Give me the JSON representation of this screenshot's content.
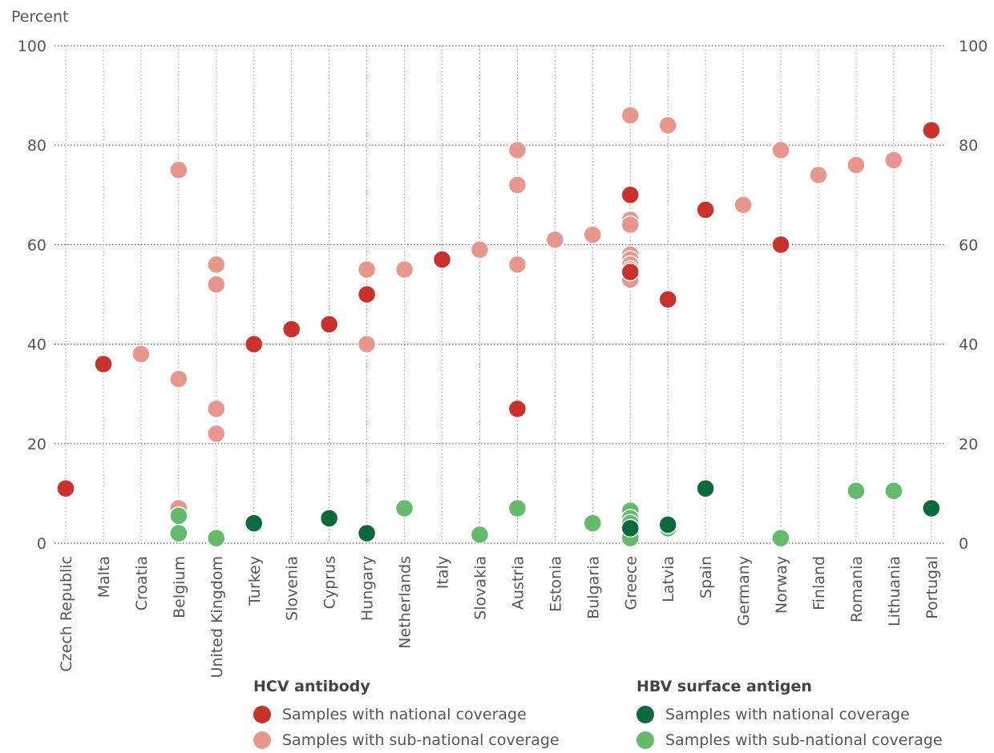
{
  "chart_data": {
    "type": "scatter",
    "y_unit": "Percent",
    "ylim": [
      0,
      100
    ],
    "y_ticks": [
      0,
      20,
      40,
      60,
      80,
      100
    ],
    "grid": true,
    "categories": [
      "Czech Republic",
      "Malta",
      "Croatia",
      "Belgium",
      "United Kingdom",
      "Turkey",
      "Slovenia",
      "Cyprus",
      "Hungary",
      "Netherlands",
      "Italy",
      "Slovakia",
      "Austria",
      "Estonia",
      "Bulgaria",
      "Greece",
      "Latvia",
      "Spain",
      "Germany",
      "Norway",
      "Finland",
      "Romania",
      "Lithuania",
      "Portugal"
    ],
    "legend_groups": [
      {
        "title": "HCV antibody",
        "entries": [
          "Samples with national coverage",
          "Samples with sub-national coverage"
        ]
      },
      {
        "title": "HBV surface antigen",
        "entries": [
          "Samples with national coverage",
          "Samples with sub-national coverage"
        ]
      }
    ],
    "series": [
      {
        "key": "hcv_sub",
        "group": "HCV antibody",
        "name": "Samples with sub-national coverage",
        "color": "#E8978F",
        "points": [
          {
            "x": "Croatia",
            "y": 38
          },
          {
            "x": "Belgium",
            "y": 75
          },
          {
            "x": "Belgium",
            "y": 33
          },
          {
            "x": "Belgium",
            "y": 7
          },
          {
            "x": "United Kingdom",
            "y": 56
          },
          {
            "x": "United Kingdom",
            "y": 52
          },
          {
            "x": "United Kingdom",
            "y": 27
          },
          {
            "x": "United Kingdom",
            "y": 22
          },
          {
            "x": "Hungary",
            "y": 55
          },
          {
            "x": "Hungary",
            "y": 40
          },
          {
            "x": "Netherlands",
            "y": 55
          },
          {
            "x": "Slovakia",
            "y": 59
          },
          {
            "x": "Austria",
            "y": 79
          },
          {
            "x": "Austria",
            "y": 72
          },
          {
            "x": "Austria",
            "y": 56
          },
          {
            "x": "Estonia",
            "y": 61
          },
          {
            "x": "Bulgaria",
            "y": 62
          },
          {
            "x": "Greece",
            "y": 86
          },
          {
            "x": "Greece",
            "y": 65
          },
          {
            "x": "Greece",
            "y": 64
          },
          {
            "x": "Greece",
            "y": 58
          },
          {
            "x": "Greece",
            "y": 57
          },
          {
            "x": "Greece",
            "y": 56
          },
          {
            "x": "Greece",
            "y": 55
          },
          {
            "x": "Greece",
            "y": 53
          },
          {
            "x": "Latvia",
            "y": 84
          },
          {
            "x": "Germany",
            "y": 68
          },
          {
            "x": "Norway",
            "y": 79
          },
          {
            "x": "Finland",
            "y": 74
          },
          {
            "x": "Romania",
            "y": 76
          },
          {
            "x": "Lithuania",
            "y": 77
          }
        ]
      },
      {
        "key": "hcv_nat",
        "group": "HCV antibody",
        "name": "Samples with national coverage",
        "color": "#C9312A",
        "points": [
          {
            "x": "Czech Republic",
            "y": 11
          },
          {
            "x": "Malta",
            "y": 36
          },
          {
            "x": "Turkey",
            "y": 40
          },
          {
            "x": "Slovenia",
            "y": 43
          },
          {
            "x": "Cyprus",
            "y": 44
          },
          {
            "x": "Hungary",
            "y": 50
          },
          {
            "x": "Italy",
            "y": 57
          },
          {
            "x": "Austria",
            "y": 27
          },
          {
            "x": "Greece",
            "y": 70
          },
          {
            "x": "Greece",
            "y": 54.5
          },
          {
            "x": "Latvia",
            "y": 49
          },
          {
            "x": "Spain",
            "y": 67
          },
          {
            "x": "Norway",
            "y": 60
          },
          {
            "x": "Portugal",
            "y": 83
          }
        ]
      },
      {
        "key": "hbv_sub",
        "group": "HBV surface antigen",
        "name": "Samples with sub-national coverage",
        "color": "#63BB6B",
        "points": [
          {
            "x": "Belgium",
            "y": 5.5
          },
          {
            "x": "Belgium",
            "y": 2
          },
          {
            "x": "United Kingdom",
            "y": 1
          },
          {
            "x": "Netherlands",
            "y": 7
          },
          {
            "x": "Slovakia",
            "y": 1.7
          },
          {
            "x": "Austria",
            "y": 7
          },
          {
            "x": "Bulgaria",
            "y": 4
          },
          {
            "x": "Greece",
            "y": 6.5
          },
          {
            "x": "Greece",
            "y": 5
          },
          {
            "x": "Greece",
            "y": 4
          },
          {
            "x": "Greece",
            "y": 2
          },
          {
            "x": "Greece",
            "y": 1
          },
          {
            "x": "Latvia",
            "y": 3
          },
          {
            "x": "Norway",
            "y": 1
          },
          {
            "x": "Romania",
            "y": 10.5
          },
          {
            "x": "Lithuania",
            "y": 10.5
          }
        ]
      },
      {
        "key": "hbv_nat",
        "group": "HBV surface antigen",
        "name": "Samples with national coverage",
        "color": "#0B6A3A",
        "points": [
          {
            "x": "Turkey",
            "y": 4
          },
          {
            "x": "Cyprus",
            "y": 5
          },
          {
            "x": "Hungary",
            "y": 2
          },
          {
            "x": "Greece",
            "y": 3
          },
          {
            "x": "Latvia",
            "y": 3.7
          },
          {
            "x": "Spain",
            "y": 11
          },
          {
            "x": "Portugal",
            "y": 7
          }
        ]
      }
    ]
  }
}
